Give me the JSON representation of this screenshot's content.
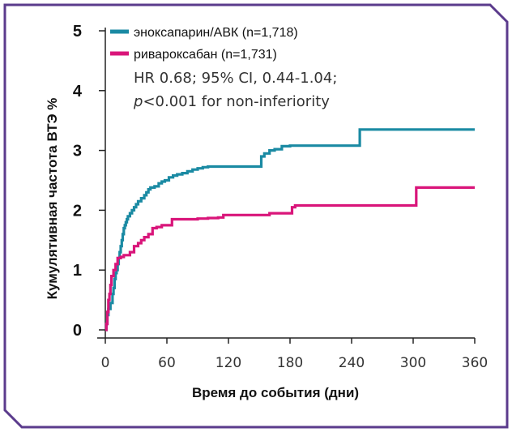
{
  "chart_data": {
    "type": "line",
    "step": true,
    "xlabel": "Время до события (дни)",
    "ylabel": "Кумулятивная частота ВТЭ %",
    "xlim": [
      0,
      360
    ],
    "ylim": [
      0,
      5
    ],
    "xticks": [
      0,
      60,
      120,
      180,
      240,
      300,
      360
    ],
    "yticks": [
      0,
      1,
      2,
      3,
      4,
      5
    ],
    "legend_position": "top-left",
    "grid": false,
    "series": [
      {
        "name": "эноксапарин/АВК (n=1,718)",
        "color": "#1a8aa3",
        "x": [
          0,
          1,
          2,
          3,
          5,
          7,
          8,
          9,
          10,
          11,
          12,
          13,
          14,
          15,
          16,
          17,
          18,
          19,
          20,
          21,
          22,
          24,
          26,
          28,
          30,
          32,
          35,
          38,
          40,
          42,
          44,
          48,
          52,
          55,
          58,
          62,
          66,
          70,
          75,
          80,
          85,
          90,
          95,
          100,
          105,
          110,
          120,
          130,
          140,
          150,
          152,
          155,
          160,
          165,
          172,
          180,
          190,
          200,
          220,
          240,
          246,
          248,
          250,
          280,
          300,
          320,
          340,
          360
        ],
        "y": [
          0,
          0.1,
          0.25,
          0.35,
          0.45,
          0.6,
          0.7,
          0.85,
          0.95,
          1.0,
          1.1,
          1.2,
          1.3,
          1.4,
          1.5,
          1.6,
          1.7,
          1.75,
          1.8,
          1.85,
          1.9,
          1.95,
          2.0,
          2.05,
          2.1,
          2.15,
          2.2,
          2.25,
          2.3,
          2.35,
          2.38,
          2.4,
          2.45,
          2.48,
          2.5,
          2.55,
          2.58,
          2.6,
          2.62,
          2.65,
          2.68,
          2.7,
          2.72,
          2.73,
          2.73,
          2.73,
          2.73,
          2.73,
          2.73,
          2.73,
          2.9,
          2.95,
          3.0,
          3.02,
          3.07,
          3.08,
          3.08,
          3.08,
          3.08,
          3.08,
          3.08,
          3.35,
          3.35,
          3.35,
          3.35,
          3.35,
          3.35,
          3.35
        ]
      },
      {
        "name": "ривароксабан (n=1,731)",
        "color": "#d9157a",
        "x": [
          0,
          1,
          2,
          3,
          4,
          5,
          6,
          8,
          10,
          12,
          15,
          18,
          20,
          24,
          28,
          32,
          35,
          38,
          42,
          46,
          50,
          55,
          60,
          65,
          70,
          80,
          90,
          100,
          110,
          115,
          125,
          140,
          160,
          170,
          180,
          182,
          185,
          200,
          250,
          300,
          303,
          305,
          330,
          360
        ],
        "y": [
          0,
          0.1,
          0.3,
          0.5,
          0.6,
          0.75,
          0.9,
          1.0,
          1.1,
          1.2,
          1.22,
          1.25,
          1.25,
          1.3,
          1.4,
          1.45,
          1.5,
          1.55,
          1.6,
          1.7,
          1.72,
          1.75,
          1.75,
          1.85,
          1.85,
          1.85,
          1.86,
          1.87,
          1.88,
          1.92,
          1.92,
          1.92,
          1.95,
          1.95,
          1.95,
          2.05,
          2.08,
          2.08,
          2.08,
          2.08,
          2.38,
          2.38,
          2.38,
          2.38
        ]
      }
    ],
    "annotations": [
      "HR 0.68; 95% CI, 0.44-1.04;",
      "<0.001 for non-inferiority"
    ],
    "annotation_p": "p"
  }
}
